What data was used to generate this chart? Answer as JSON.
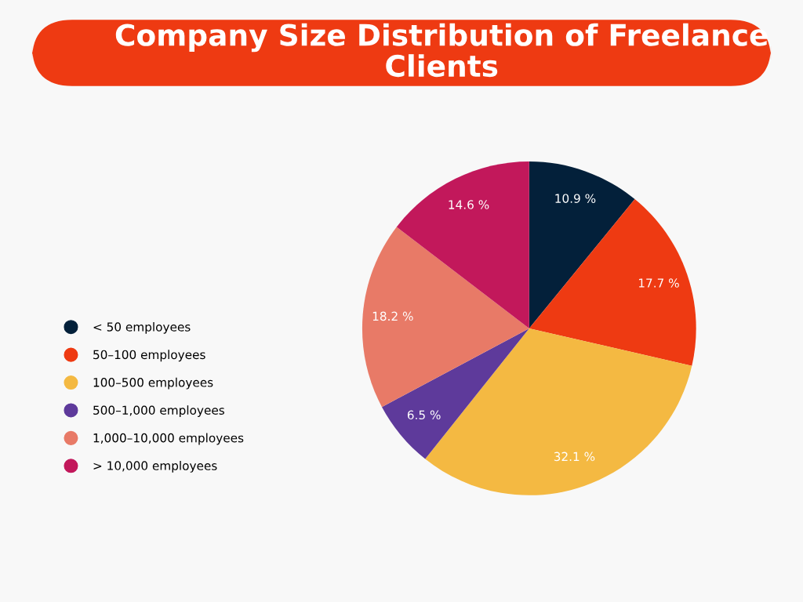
{
  "chart_data": {
    "type": "pie",
    "title": "Company Size Distribution of Freelance Clients",
    "categories": [
      "< 50 employees",
      "50–100 employees",
      "100–500 employees",
      "500–1,000 employees",
      "1,000–10,000 employees",
      "> 10,000 employees"
    ],
    "values": [
      10.9,
      17.7,
      32.1,
      6.5,
      18.2,
      14.6
    ],
    "value_labels": [
      "10.9 %",
      "17.7 %",
      "32.1 %",
      "6.5 %",
      "18.2 %",
      "14.6 %"
    ],
    "colors": [
      "#03203a",
      "#ee3a12",
      "#f4b942",
      "#5e3a9b",
      "#e87a67",
      "#c2185b"
    ],
    "legend": "left"
  }
}
